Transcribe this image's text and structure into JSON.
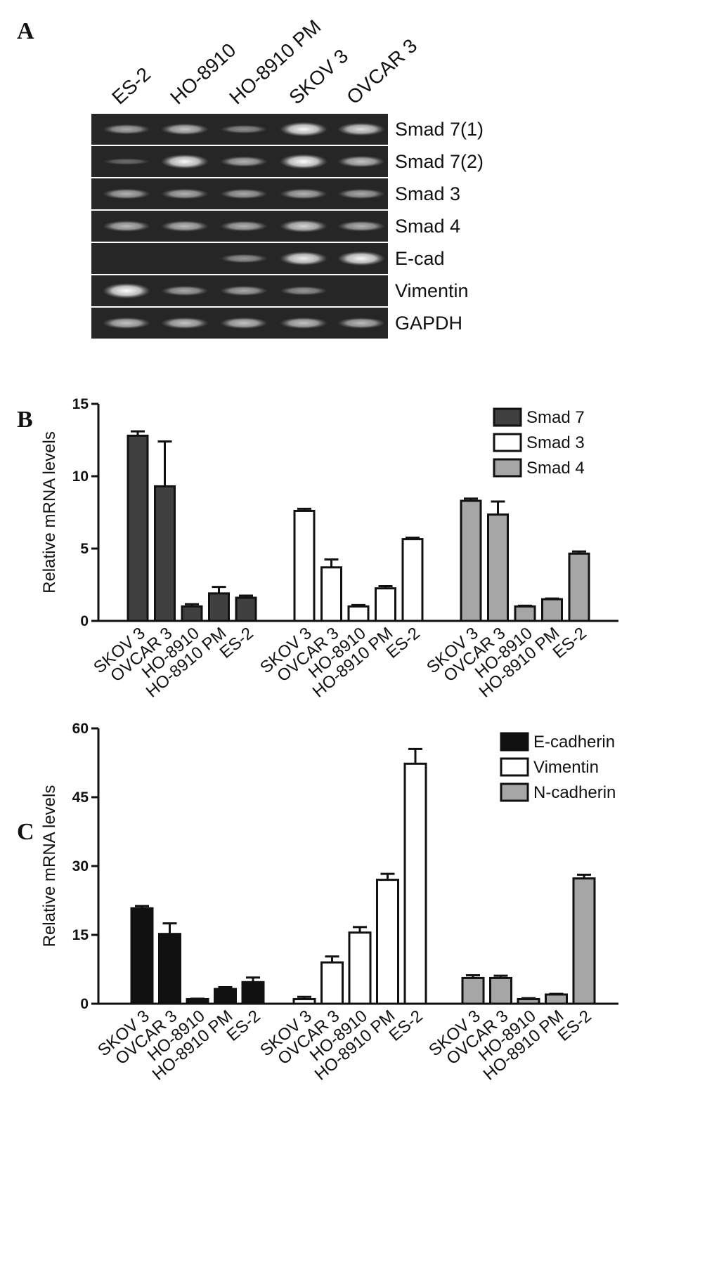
{
  "panels": {
    "A": "A",
    "B": "B",
    "C": "C"
  },
  "gel": {
    "lanes": [
      "ES-2",
      "HO-8910",
      "HO-8910 PM",
      "SKOV 3",
      "OVCAR 3"
    ],
    "rows": [
      {
        "label": "Smad 7(1)",
        "intensity": [
          0.45,
          0.6,
          0.3,
          0.9,
          0.75
        ]
      },
      {
        "label": "Smad 7(2)",
        "intensity": [
          0.1,
          0.9,
          0.5,
          0.95,
          0.6
        ]
      },
      {
        "label": "Smad 3",
        "intensity": [
          0.5,
          0.5,
          0.45,
          0.5,
          0.45
        ]
      },
      {
        "label": "Smad 4",
        "intensity": [
          0.55,
          0.55,
          0.5,
          0.7,
          0.5
        ]
      },
      {
        "label": "E-cad",
        "intensity": [
          0.0,
          0.0,
          0.35,
          0.85,
          0.9
        ]
      },
      {
        "label": "Vimentin",
        "intensity": [
          1.0,
          0.45,
          0.45,
          0.35,
          0.0
        ]
      },
      {
        "label": "GAPDH",
        "intensity": [
          0.6,
          0.6,
          0.6,
          0.6,
          0.55
        ]
      }
    ]
  },
  "chart_data": [
    {
      "type": "bar",
      "panel": "B",
      "ylabel": "Relative mRNA levels",
      "ylim": [
        0,
        15
      ],
      "yticks": [
        "0",
        "5",
        "10",
        "15"
      ],
      "categories": [
        "SKOV 3",
        "OVCAR 3",
        "HO-8910",
        "HO-8910 PM",
        "ES-2"
      ],
      "legend_position": "top-right",
      "series": [
        {
          "name": "Smad 7",
          "color": "#404040",
          "values": [
            12.8,
            9.3,
            1.0,
            1.9,
            1.6
          ],
          "errors": [
            0.3,
            3.1,
            0.15,
            0.45,
            0.15
          ]
        },
        {
          "name": "Smad 3",
          "color": "#ffffff",
          "values": [
            7.6,
            3.7,
            1.0,
            2.25,
            5.65
          ],
          "errors": [
            0.15,
            0.55,
            0.1,
            0.15,
            0.1
          ]
        },
        {
          "name": "Smad 4",
          "color": "#a6a6a6",
          "values": [
            8.3,
            7.35,
            1.0,
            1.5,
            4.65
          ],
          "errors": [
            0.15,
            0.9,
            0.05,
            0.05,
            0.15
          ]
        }
      ]
    },
    {
      "type": "bar",
      "panel": "C",
      "ylabel": "Relative mRNA levels",
      "ylim": [
        0,
        60
      ],
      "yticks": [
        "0",
        "15",
        "30",
        "45",
        "60"
      ],
      "categories": [
        "SKOV 3",
        "OVCAR 3",
        "HO-8910",
        "HO-8910 PM",
        "ES-2"
      ],
      "legend_position": "top-right",
      "series": [
        {
          "name": "E-cadherin",
          "color": "#111111",
          "values": [
            20.8,
            15.2,
            1.0,
            3.2,
            4.7
          ],
          "errors": [
            0.5,
            2.3,
            0.1,
            0.4,
            1.0
          ]
        },
        {
          "name": "Vimentin",
          "color": "#ffffff",
          "values": [
            1.0,
            9.0,
            15.5,
            27.0,
            52.3
          ],
          "errors": [
            0.5,
            1.3,
            1.2,
            1.3,
            3.2
          ]
        },
        {
          "name": "N-cadherin",
          "color": "#a6a6a6",
          "values": [
            5.6,
            5.6,
            1.0,
            2.0,
            27.3
          ],
          "errors": [
            0.6,
            0.5,
            0.2,
            0.15,
            0.8
          ]
        }
      ]
    }
  ]
}
